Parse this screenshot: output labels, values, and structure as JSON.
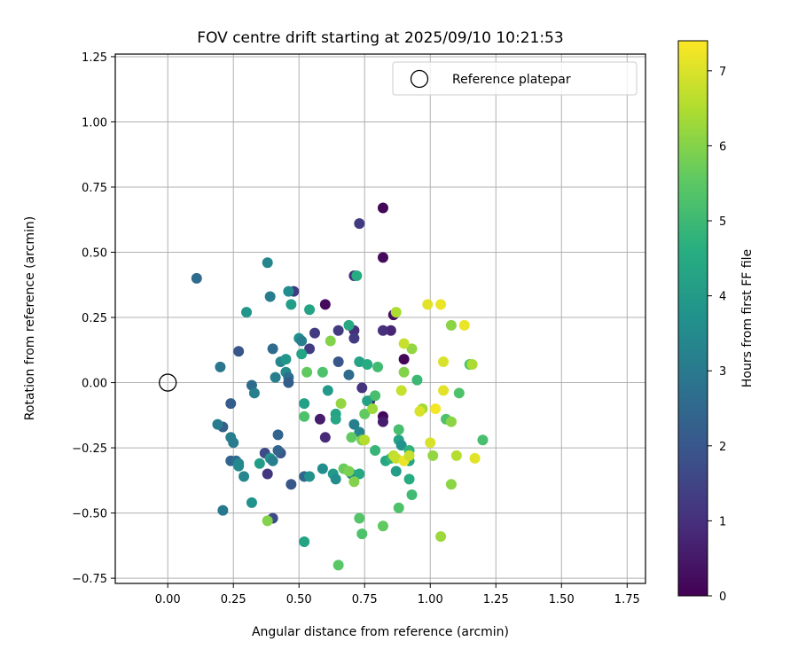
{
  "chart_data": {
    "type": "scatter",
    "title": "FOV centre drift starting at 2025/09/10 10:21:53",
    "xlabel": "Angular distance from reference (arcmin)",
    "ylabel": "Rotation from reference (arcmin)",
    "xlim": [
      -0.2,
      1.82
    ],
    "ylim": [
      -0.77,
      1.26
    ],
    "xticks": [
      0.0,
      0.25,
      0.5,
      0.75,
      1.0,
      1.25,
      1.5,
      1.75
    ],
    "xtick_labels": [
      "0.00",
      "0.25",
      "0.50",
      "0.75",
      "1.00",
      "1.25",
      "1.50",
      "1.75"
    ],
    "yticks": [
      -0.75,
      -0.5,
      -0.25,
      0.0,
      0.25,
      0.5,
      0.75,
      1.0,
      1.25
    ],
    "ytick_labels": [
      "−0.75",
      "−0.50",
      "−0.25",
      "0.00",
      "0.25",
      "0.50",
      "0.75",
      "1.00",
      "1.25"
    ],
    "grid": true,
    "legend": {
      "position": "top-right",
      "entries": [
        "Reference platepar"
      ]
    },
    "reference_point": {
      "x": 0.0,
      "y": 0.0
    },
    "colorbar": {
      "label": "Hours from first FF file",
      "colormap": "viridis",
      "range": [
        0,
        7.4
      ],
      "ticks": [
        0,
        1,
        2,
        3,
        4,
        5,
        6,
        7
      ],
      "tick_labels": [
        "0",
        "1",
        "2",
        "3",
        "4",
        "5",
        "6",
        "7"
      ]
    },
    "points": [
      {
        "x": 0.82,
        "y": 0.67,
        "c": 0.1
      },
      {
        "x": 0.82,
        "y": 0.48,
        "c": 0.2
      },
      {
        "x": 0.6,
        "y": 0.3,
        "c": 0.2
      },
      {
        "x": 0.9,
        "y": 0.09,
        "c": 0.1
      },
      {
        "x": 0.82,
        "y": -0.13,
        "c": 0.15
      },
      {
        "x": 0.82,
        "y": -0.15,
        "c": 0.6
      },
      {
        "x": 0.58,
        "y": -0.14,
        "c": 0.6
      },
      {
        "x": 0.6,
        "y": -0.21,
        "c": 0.9
      },
      {
        "x": 0.77,
        "y": -0.07,
        "c": 0.8
      },
      {
        "x": 0.74,
        "y": -0.02,
        "c": 1.1
      },
      {
        "x": 0.85,
        "y": 0.2,
        "c": 0.8
      },
      {
        "x": 0.82,
        "y": 0.2,
        "c": 1.0
      },
      {
        "x": 0.86,
        "y": 0.26,
        "c": 0.3
      },
      {
        "x": 0.73,
        "y": 0.61,
        "c": 1.3
      },
      {
        "x": 0.71,
        "y": 0.2,
        "c": 1.0
      },
      {
        "x": 0.71,
        "y": 0.17,
        "c": 1.3
      },
      {
        "x": 0.56,
        "y": 0.19,
        "c": 1.3
      },
      {
        "x": 0.54,
        "y": 0.13,
        "c": 1.3
      },
      {
        "x": 0.65,
        "y": 0.08,
        "c": 2.0
      },
      {
        "x": 0.65,
        "y": 0.2,
        "c": 1.3
      },
      {
        "x": 0.48,
        "y": 0.35,
        "c": 1.3
      },
      {
        "x": 0.71,
        "y": 0.41,
        "c": 1.0
      },
      {
        "x": 0.37,
        "y": -0.27,
        "c": 1.7
      },
      {
        "x": 0.38,
        "y": -0.35,
        "c": 1.2
      },
      {
        "x": 0.4,
        "y": -0.52,
        "c": 1.7
      },
      {
        "x": 0.43,
        "y": -0.27,
        "c": 2.0
      },
      {
        "x": 0.42,
        "y": -0.26,
        "c": 2.4
      },
      {
        "x": 0.42,
        "y": -0.2,
        "c": 2.4
      },
      {
        "x": 0.47,
        "y": -0.39,
        "c": 2.0
      },
      {
        "x": 0.52,
        "y": -0.36,
        "c": 2.5
      },
      {
        "x": 0.24,
        "y": -0.08,
        "c": 2.2
      },
      {
        "x": 0.24,
        "y": -0.3,
        "c": 2.4
      },
      {
        "x": 0.26,
        "y": -0.3,
        "c": 2.6
      },
      {
        "x": 0.27,
        "y": 0.12,
        "c": 2.0
      },
      {
        "x": 0.21,
        "y": -0.17,
        "c": 2.3
      },
      {
        "x": 0.11,
        "y": 0.4,
        "c": 2.6
      },
      {
        "x": 0.2,
        "y": 0.06,
        "c": 2.9
      },
      {
        "x": 0.21,
        "y": -0.49,
        "c": 3.0
      },
      {
        "x": 0.19,
        "y": -0.16,
        "c": 3.1
      },
      {
        "x": 0.24,
        "y": -0.21,
        "c": 3.2
      },
      {
        "x": 0.25,
        "y": -0.23,
        "c": 3.1
      },
      {
        "x": 0.27,
        "y": -0.31,
        "c": 3.4
      },
      {
        "x": 0.27,
        "y": -0.32,
        "c": 3.5
      },
      {
        "x": 0.29,
        "y": -0.36,
        "c": 3.4
      },
      {
        "x": 0.32,
        "y": -0.46,
        "c": 3.8
      },
      {
        "x": 0.32,
        "y": -0.01,
        "c": 2.6
      },
      {
        "x": 0.33,
        "y": -0.04,
        "c": 3.2
      },
      {
        "x": 0.3,
        "y": 0.27,
        "c": 3.9
      },
      {
        "x": 0.38,
        "y": 0.46,
        "c": 3.4
      },
      {
        "x": 0.39,
        "y": 0.33,
        "c": 3.1
      },
      {
        "x": 0.4,
        "y": 0.13,
        "c": 2.6
      },
      {
        "x": 0.41,
        "y": 0.02,
        "c": 3.2
      },
      {
        "x": 0.43,
        "y": 0.08,
        "c": 3.4
      },
      {
        "x": 0.45,
        "y": 0.04,
        "c": 3.5
      },
      {
        "x": 0.45,
        "y": 0.09,
        "c": 3.9
      },
      {
        "x": 0.46,
        "y": 0.02,
        "c": 2.7
      },
      {
        "x": 0.46,
        "y": 0.0,
        "c": 2.2
      },
      {
        "x": 0.46,
        "y": 0.35,
        "c": 3.6
      },
      {
        "x": 0.47,
        "y": 0.3,
        "c": 4.1
      },
      {
        "x": 0.5,
        "y": 0.17,
        "c": 3.7
      },
      {
        "x": 0.51,
        "y": 0.11,
        "c": 4.3
      },
      {
        "x": 0.51,
        "y": 0.16,
        "c": 3.2
      },
      {
        "x": 0.54,
        "y": 0.28,
        "c": 4.3
      },
      {
        "x": 0.35,
        "y": -0.31,
        "c": 4.1
      },
      {
        "x": 0.39,
        "y": -0.29,
        "c": 3.8
      },
      {
        "x": 0.4,
        "y": -0.3,
        "c": 3.2
      },
      {
        "x": 0.52,
        "y": -0.08,
        "c": 4.2
      },
      {
        "x": 0.52,
        "y": -0.61,
        "c": 4.3
      },
      {
        "x": 0.54,
        "y": -0.36,
        "c": 3.8
      },
      {
        "x": 0.59,
        "y": -0.33,
        "c": 3.6
      },
      {
        "x": 0.61,
        "y": -0.03,
        "c": 4.0
      },
      {
        "x": 0.63,
        "y": -0.35,
        "c": 4.0
      },
      {
        "x": 0.64,
        "y": -0.37,
        "c": 3.6
      },
      {
        "x": 0.64,
        "y": -0.12,
        "c": 4.3
      },
      {
        "x": 0.64,
        "y": -0.14,
        "c": 4.4
      },
      {
        "x": 0.69,
        "y": 0.22,
        "c": 4.5
      },
      {
        "x": 0.69,
        "y": 0.03,
        "c": 2.6
      },
      {
        "x": 0.71,
        "y": -0.16,
        "c": 3.2
      },
      {
        "x": 0.72,
        "y": 0.41,
        "c": 4.6
      },
      {
        "x": 0.73,
        "y": -0.19,
        "c": 3.4
      },
      {
        "x": 0.73,
        "y": 0.08,
        "c": 4.3
      },
      {
        "x": 0.74,
        "y": -0.22,
        "c": 3.7
      },
      {
        "x": 0.7,
        "y": -0.35,
        "c": 3.5
      },
      {
        "x": 0.73,
        "y": -0.35,
        "c": 4.5
      },
      {
        "x": 0.76,
        "y": -0.07,
        "c": 4.2
      },
      {
        "x": 0.76,
        "y": 0.07,
        "c": 4.6
      },
      {
        "x": 0.79,
        "y": -0.26,
        "c": 4.9
      },
      {
        "x": 0.8,
        "y": 0.06,
        "c": 5.1
      },
      {
        "x": 0.79,
        "y": -0.05,
        "c": 5.2
      },
      {
        "x": 0.83,
        "y": -0.3,
        "c": 4.4
      },
      {
        "x": 0.85,
        "y": -0.29,
        "c": 4.8
      },
      {
        "x": 0.87,
        "y": -0.34,
        "c": 4.1
      },
      {
        "x": 0.88,
        "y": -0.22,
        "c": 4.3
      },
      {
        "x": 0.89,
        "y": -0.24,
        "c": 3.8
      },
      {
        "x": 0.92,
        "y": -0.26,
        "c": 4.8
      },
      {
        "x": 0.92,
        "y": -0.3,
        "c": 4.4
      },
      {
        "x": 0.92,
        "y": -0.37,
        "c": 4.6
      },
      {
        "x": 0.93,
        "y": -0.43,
        "c": 5.1
      },
      {
        "x": 0.95,
        "y": 0.01,
        "c": 5.0
      },
      {
        "x": 0.88,
        "y": -0.18,
        "c": 5.2
      },
      {
        "x": 0.88,
        "y": -0.48,
        "c": 5.3
      },
      {
        "x": 1.06,
        "y": -0.14,
        "c": 5.3
      },
      {
        "x": 1.11,
        "y": -0.04,
        "c": 5.3
      },
      {
        "x": 1.15,
        "y": 0.07,
        "c": 5.4
      },
      {
        "x": 1.2,
        "y": -0.22,
        "c": 5.2
      },
      {
        "x": 0.73,
        "y": -0.52,
        "c": 5.4
      },
      {
        "x": 0.74,
        "y": -0.58,
        "c": 5.3
      },
      {
        "x": 0.82,
        "y": -0.55,
        "c": 5.6
      },
      {
        "x": 0.65,
        "y": -0.7,
        "c": 5.5
      },
      {
        "x": 0.53,
        "y": 0.04,
        "c": 5.6
      },
      {
        "x": 0.52,
        "y": -0.13,
        "c": 5.3
      },
      {
        "x": 0.59,
        "y": 0.04,
        "c": 5.3
      },
      {
        "x": 0.62,
        "y": 0.16,
        "c": 6.0
      },
      {
        "x": 0.38,
        "y": -0.53,
        "c": 6.0
      },
      {
        "x": 0.67,
        "y": -0.33,
        "c": 5.7
      },
      {
        "x": 0.69,
        "y": -0.34,
        "c": 5.9
      },
      {
        "x": 0.71,
        "y": -0.38,
        "c": 6.0
      },
      {
        "x": 0.7,
        "y": -0.21,
        "c": 5.6
      },
      {
        "x": 0.74,
        "y": -0.22,
        "c": 5.9
      },
      {
        "x": 0.75,
        "y": -0.12,
        "c": 5.6
      },
      {
        "x": 0.78,
        "y": -0.1,
        "c": 6.3
      },
      {
        "x": 0.66,
        "y": -0.08,
        "c": 6.2
      },
      {
        "x": 0.89,
        "y": -0.03,
        "c": 6.8
      },
      {
        "x": 0.9,
        "y": 0.04,
        "c": 6.0
      },
      {
        "x": 0.93,
        "y": 0.13,
        "c": 6.2
      },
      {
        "x": 0.9,
        "y": 0.15,
        "c": 6.8
      },
      {
        "x": 0.87,
        "y": 0.27,
        "c": 6.5
      },
      {
        "x": 0.99,
        "y": 0.3,
        "c": 7.1
      },
      {
        "x": 1.04,
        "y": 0.3,
        "c": 7.2
      },
      {
        "x": 1.08,
        "y": 0.22,
        "c": 6.1
      },
      {
        "x": 1.13,
        "y": 0.22,
        "c": 7.2
      },
      {
        "x": 1.05,
        "y": 0.08,
        "c": 7.0
      },
      {
        "x": 1.16,
        "y": 0.07,
        "c": 6.5
      },
      {
        "x": 1.05,
        "y": -0.03,
        "c": 7.1
      },
      {
        "x": 0.97,
        "y": -0.1,
        "c": 6.4
      },
      {
        "x": 0.96,
        "y": -0.11,
        "c": 7.0
      },
      {
        "x": 1.02,
        "y": -0.1,
        "c": 7.3
      },
      {
        "x": 1.0,
        "y": -0.23,
        "c": 7.0
      },
      {
        "x": 1.01,
        "y": -0.28,
        "c": 6.2
      },
      {
        "x": 1.1,
        "y": -0.28,
        "c": 6.6
      },
      {
        "x": 1.17,
        "y": -0.29,
        "c": 7.1
      },
      {
        "x": 1.08,
        "y": -0.15,
        "c": 6.1
      },
      {
        "x": 1.08,
        "y": -0.39,
        "c": 6.1
      },
      {
        "x": 1.04,
        "y": -0.59,
        "c": 6.3
      },
      {
        "x": 0.86,
        "y": -0.28,
        "c": 6.7
      },
      {
        "x": 0.87,
        "y": -0.29,
        "c": 6.8
      },
      {
        "x": 0.9,
        "y": -0.3,
        "c": 7.2
      },
      {
        "x": 0.92,
        "y": -0.28,
        "c": 6.8
      },
      {
        "x": 0.75,
        "y": -0.22,
        "c": 6.6
      }
    ]
  }
}
